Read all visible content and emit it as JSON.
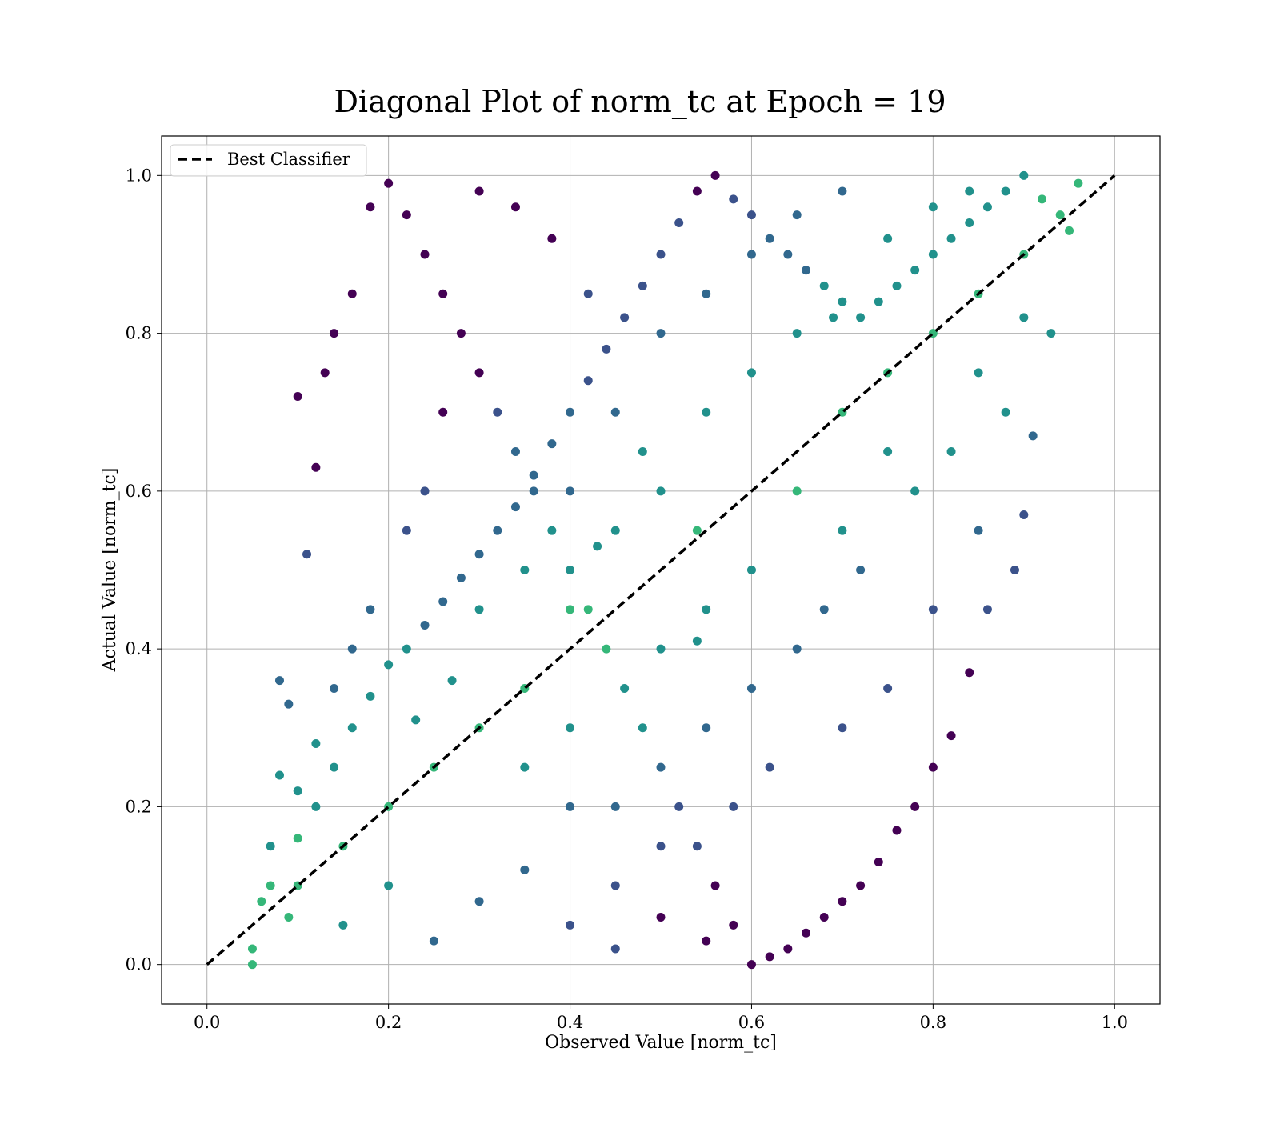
{
  "chart_data": {
    "type": "scatter",
    "title": "Diagonal Plot of norm_tc at Epoch = 19",
    "xlabel": "Observed Value [norm_tc]",
    "ylabel": "Actual Value [norm_tc]",
    "xlim": [
      -0.05,
      1.05
    ],
    "ylim": [
      -0.05,
      1.05
    ],
    "x_ticks": [
      "0.0",
      "0.2",
      "0.4",
      "0.6",
      "0.8",
      "1.0"
    ],
    "y_ticks": [
      "0.0",
      "0.2",
      "0.4",
      "0.6",
      "0.8",
      "1.0"
    ],
    "x_tick_values": [
      0.0,
      0.2,
      0.4,
      0.6,
      0.8,
      1.0
    ],
    "y_tick_values": [
      0.0,
      0.2,
      0.4,
      0.6,
      0.8,
      1.0
    ],
    "grid": true,
    "legend": {
      "position": "top-left",
      "entries": [
        "Best Classifier"
      ]
    },
    "colormap": "viridis",
    "colors": {
      "line": "#000000",
      "grid": "#b0b0b0",
      "low": "#440154",
      "mid": "#31688e",
      "high": "#35b779"
    },
    "reference_line": {
      "name": "Best Classifier",
      "style": "dashed",
      "x": [
        0.0,
        1.0
      ],
      "y": [
        0.0,
        1.0
      ]
    },
    "series": [
      {
        "marker": "circle",
        "points": [
          [
            0.05,
            0.02
          ],
          [
            0.07,
            0.1
          ],
          [
            0.09,
            0.06
          ],
          [
            0.1,
            0.16
          ],
          [
            0.12,
            0.2
          ],
          [
            0.14,
            0.25
          ],
          [
            0.16,
            0.3
          ],
          [
            0.18,
            0.34
          ],
          [
            0.2,
            0.38
          ],
          [
            0.22,
            0.4
          ],
          [
            0.24,
            0.43
          ],
          [
            0.26,
            0.46
          ],
          [
            0.28,
            0.49
          ],
          [
            0.3,
            0.52
          ],
          [
            0.32,
            0.55
          ],
          [
            0.34,
            0.58
          ],
          [
            0.36,
            0.62
          ],
          [
            0.38,
            0.66
          ],
          [
            0.4,
            0.7
          ],
          [
            0.42,
            0.74
          ],
          [
            0.44,
            0.78
          ],
          [
            0.46,
            0.82
          ],
          [
            0.48,
            0.86
          ],
          [
            0.5,
            0.9
          ],
          [
            0.52,
            0.94
          ],
          [
            0.54,
            0.98
          ],
          [
            0.56,
            1.0
          ],
          [
            0.58,
            0.97
          ],
          [
            0.6,
            0.95
          ],
          [
            0.62,
            0.92
          ],
          [
            0.64,
            0.9
          ],
          [
            0.66,
            0.88
          ],
          [
            0.68,
            0.86
          ],
          [
            0.7,
            0.84
          ],
          [
            0.72,
            0.82
          ],
          [
            0.74,
            0.84
          ],
          [
            0.76,
            0.86
          ],
          [
            0.78,
            0.88
          ],
          [
            0.8,
            0.9
          ],
          [
            0.82,
            0.92
          ],
          [
            0.84,
            0.94
          ],
          [
            0.86,
            0.96
          ],
          [
            0.88,
            0.98
          ],
          [
            0.9,
            1.0
          ],
          [
            0.92,
            0.97
          ],
          [
            0.94,
            0.95
          ],
          [
            0.95,
            0.93
          ],
          [
            0.93,
            0.8
          ],
          [
            0.91,
            0.67
          ],
          [
            0.9,
            0.57
          ],
          [
            0.89,
            0.5
          ],
          [
            0.86,
            0.45
          ],
          [
            0.84,
            0.37
          ],
          [
            0.82,
            0.29
          ],
          [
            0.8,
            0.25
          ],
          [
            0.78,
            0.2
          ],
          [
            0.76,
            0.17
          ],
          [
            0.74,
            0.13
          ],
          [
            0.72,
            0.1
          ],
          [
            0.7,
            0.08
          ],
          [
            0.68,
            0.06
          ],
          [
            0.66,
            0.04
          ],
          [
            0.64,
            0.02
          ],
          [
            0.62,
            0.01
          ],
          [
            0.6,
            0.0
          ],
          [
            0.58,
            0.05
          ],
          [
            0.56,
            0.1
          ],
          [
            0.54,
            0.15
          ],
          [
            0.52,
            0.2
          ],
          [
            0.5,
            0.25
          ],
          [
            0.48,
            0.3
          ],
          [
            0.46,
            0.35
          ],
          [
            0.44,
            0.4
          ],
          [
            0.42,
            0.45
          ],
          [
            0.4,
            0.5
          ],
          [
            0.38,
            0.55
          ],
          [
            0.36,
            0.6
          ],
          [
            0.34,
            0.65
          ],
          [
            0.32,
            0.7
          ],
          [
            0.3,
            0.75
          ],
          [
            0.28,
            0.8
          ],
          [
            0.26,
            0.85
          ],
          [
            0.24,
            0.9
          ],
          [
            0.22,
            0.95
          ],
          [
            0.2,
            0.99
          ],
          [
            0.18,
            0.96
          ],
          [
            0.16,
            0.85
          ],
          [
            0.14,
            0.8
          ],
          [
            0.13,
            0.75
          ],
          [
            0.12,
            0.63
          ],
          [
            0.11,
            0.52
          ],
          [
            0.1,
            0.72
          ],
          [
            0.09,
            0.33
          ],
          [
            0.08,
            0.36
          ],
          [
            0.08,
            0.24
          ],
          [
            0.07,
            0.15
          ],
          [
            0.06,
            0.08
          ],
          [
            0.05,
            0.0
          ],
          [
            0.15,
            0.05
          ],
          [
            0.2,
            0.1
          ],
          [
            0.25,
            0.03
          ],
          [
            0.3,
            0.08
          ],
          [
            0.35,
            0.12
          ],
          [
            0.4,
            0.05
          ],
          [
            0.45,
            0.02
          ],
          [
            0.5,
            0.06
          ],
          [
            0.55,
            0.03
          ],
          [
            0.35,
            0.25
          ],
          [
            0.4,
            0.3
          ],
          [
            0.45,
            0.2
          ],
          [
            0.5,
            0.4
          ],
          [
            0.55,
            0.45
          ],
          [
            0.45,
            0.55
          ],
          [
            0.5,
            0.6
          ],
          [
            0.55,
            0.7
          ],
          [
            0.6,
            0.75
          ],
          [
            0.65,
            0.8
          ],
          [
            0.7,
            0.7
          ],
          [
            0.75,
            0.75
          ],
          [
            0.8,
            0.8
          ],
          [
            0.85,
            0.85
          ],
          [
            0.9,
            0.9
          ],
          [
            0.65,
            0.6
          ],
          [
            0.7,
            0.55
          ],
          [
            0.75,
            0.65
          ],
          [
            0.6,
            0.5
          ],
          [
            0.65,
            0.4
          ],
          [
            0.7,
            0.3
          ],
          [
            0.75,
            0.35
          ],
          [
            0.8,
            0.45
          ],
          [
            0.85,
            0.55
          ],
          [
            0.6,
            0.35
          ],
          [
            0.55,
            0.3
          ],
          [
            0.5,
            0.15
          ],
          [
            0.45,
            0.1
          ],
          [
            0.4,
            0.2
          ],
          [
            0.35,
            0.35
          ],
          [
            0.3,
            0.3
          ],
          [
            0.25,
            0.25
          ],
          [
            0.2,
            0.2
          ],
          [
            0.15,
            0.15
          ],
          [
            0.1,
            0.1
          ],
          [
            0.3,
            0.45
          ],
          [
            0.35,
            0.5
          ],
          [
            0.4,
            0.6
          ],
          [
            0.45,
            0.7
          ],
          [
            0.5,
            0.8
          ],
          [
            0.55,
            0.85
          ],
          [
            0.6,
            0.9
          ],
          [
            0.65,
            0.95
          ],
          [
            0.7,
            0.98
          ],
          [
            0.75,
            0.92
          ],
          [
            0.8,
            0.96
          ],
          [
            0.85,
            0.75
          ],
          [
            0.9,
            0.82
          ],
          [
            0.88,
            0.7
          ],
          [
            0.82,
            0.65
          ],
          [
            0.78,
            0.6
          ],
          [
            0.72,
            0.5
          ],
          [
            0.68,
            0.45
          ],
          [
            0.62,
            0.25
          ],
          [
            0.58,
            0.2
          ],
          [
            0.54,
            0.55
          ],
          [
            0.48,
            0.65
          ],
          [
            0.42,
            0.85
          ],
          [
            0.38,
            0.92
          ],
          [
            0.34,
            0.96
          ],
          [
            0.3,
            0.98
          ],
          [
            0.26,
            0.7
          ],
          [
            0.24,
            0.6
          ],
          [
            0.22,
            0.55
          ],
          [
            0.18,
            0.45
          ],
          [
            0.16,
            0.4
          ],
          [
            0.14,
            0.35
          ],
          [
            0.12,
            0.28
          ],
          [
            0.1,
            0.22
          ],
          [
            0.69,
            0.82
          ],
          [
            0.54,
            0.41
          ],
          [
            0.43,
            0.53
          ],
          [
            0.4,
            0.45
          ],
          [
            0.23,
            0.31
          ],
          [
            0.27,
            0.36
          ],
          [
            0.84,
            0.98
          ],
          [
            0.96,
            0.99
          ]
        ]
      }
    ]
  }
}
